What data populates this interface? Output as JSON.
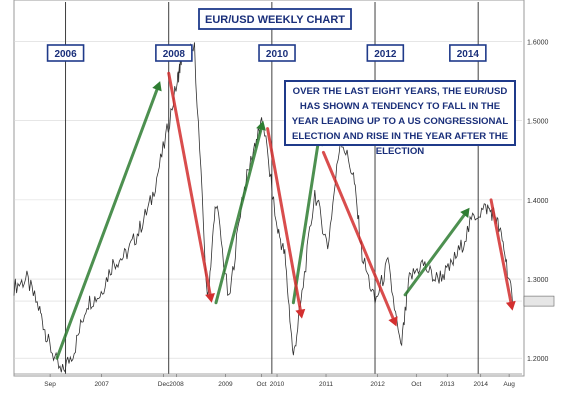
{
  "chart_data": {
    "type": "line",
    "title": "EUR/USD WEEKLY CHART",
    "annotation": "OVER THE LAST EIGHT YEARS, THE EUR/USD HAS SHOWN A TENDENCY TO FALL IN THE YEAR LEADING UP TO A US CONGRESSIONAL ELECTION AND RISE IN THE YEAR AFTER THE ELECTION",
    "year_markers": [
      "2006",
      "2008",
      "2010",
      "2012",
      "2014"
    ],
    "x_ticks": [
      "Sep",
      "2007",
      "Dec",
      "2008",
      "2009",
      "Oct",
      "2010",
      "2011",
      "2012",
      "Oct",
      "2013",
      "2014",
      "Aug"
    ],
    "y_ticks": [
      "1.2000",
      "1.2721",
      "1.3000",
      "1.4000",
      "1.5000",
      "1.6000"
    ],
    "ylim": [
      1.18,
      1.65
    ],
    "current_value": 1.2721,
    "grid": true,
    "series": [
      {
        "x": [
          "2005-01",
          "2005-04",
          "2005-07",
          "2005-09",
          "2005-12",
          "2006-03",
          "2006-06",
          "2006-09",
          "2006-12",
          "2007-03",
          "2007-06",
          "2007-09",
          "2007-12",
          "2008-03",
          "2008-04",
          "2008-07",
          "2008-10",
          "2008-12",
          "2009-03",
          "2009-06",
          "2009-09",
          "2009-11",
          "2010-02",
          "2010-04",
          "2010-06",
          "2010-08",
          "2010-11",
          "2011-02",
          "2011-05",
          "2011-08",
          "2011-10",
          "2012-01",
          "2012-04",
          "2012-07",
          "2012-09",
          "2012-12",
          "2013-03",
          "2013-06",
          "2013-09",
          "2013-12",
          "2014-03",
          "2014-05",
          "2014-07",
          "2014-09"
        ],
        "y": [
          1.29,
          1.3,
          1.26,
          1.22,
          1.18,
          1.21,
          1.27,
          1.28,
          1.32,
          1.33,
          1.36,
          1.4,
          1.47,
          1.55,
          1.58,
          1.59,
          1.27,
          1.4,
          1.27,
          1.4,
          1.47,
          1.5,
          1.37,
          1.33,
          1.2,
          1.28,
          1.41,
          1.34,
          1.48,
          1.43,
          1.33,
          1.27,
          1.32,
          1.21,
          1.3,
          1.32,
          1.3,
          1.31,
          1.34,
          1.38,
          1.39,
          1.38,
          1.34,
          1.27
        ]
      }
    ],
    "trend_arrows": {
      "up": [
        {
          "from": [
            "2005-11",
            1.2
          ],
          "to": [
            "2007-11",
            1.55
          ]
        },
        {
          "from": [
            "2008-12",
            1.27
          ],
          "to": [
            "2009-11",
            1.5
          ]
        },
        {
          "from": [
            "2010-06",
            1.27
          ],
          "to": [
            "2010-12",
            1.48
          ]
        },
        {
          "from": [
            "2012-08",
            1.28
          ],
          "to": [
            "2013-11",
            1.39
          ]
        }
      ],
      "down": [
        {
          "from": [
            "2008-01",
            1.56
          ],
          "to": [
            "2008-11",
            1.27
          ]
        },
        {
          "from": [
            "2009-12",
            1.49
          ],
          "to": [
            "2010-08",
            1.25
          ]
        },
        {
          "from": [
            "2011-01",
            1.46
          ],
          "to": [
            "2012-06",
            1.24
          ]
        },
        {
          "from": [
            "2014-04",
            1.4
          ],
          "to": [
            "2014-09",
            1.26
          ]
        }
      ]
    },
    "colors": {
      "price_line": "#2f2f2f",
      "up_arrow": "#2e7d32",
      "down_arrow": "#d32f2f",
      "label_border": "#1f3a8a",
      "label_text": "#1a2f7a",
      "grid": "#d7d7d7"
    }
  }
}
